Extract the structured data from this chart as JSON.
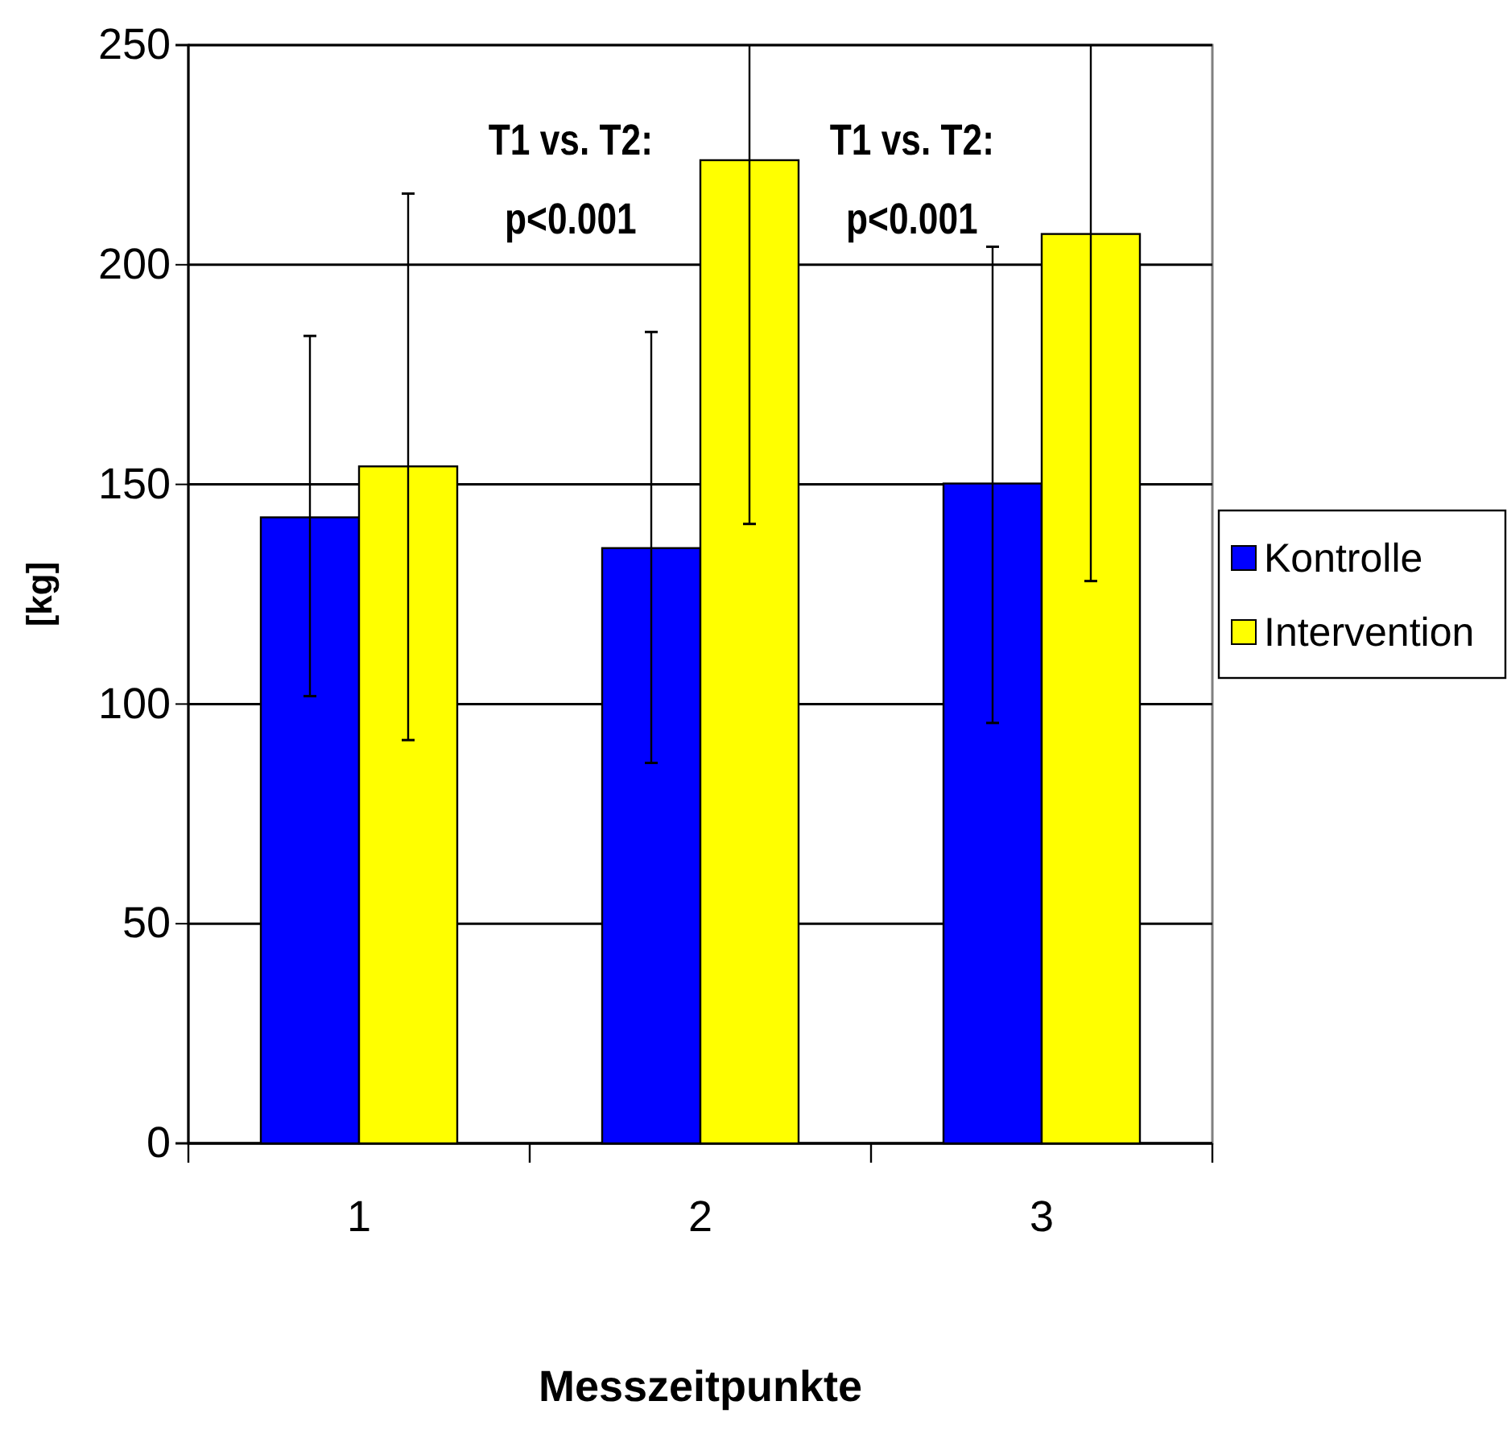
{
  "chart_data": {
    "type": "bar",
    "xlabel": "Messzeitpunkte",
    "ylabel": "[kg]",
    "categories": [
      "1",
      "2",
      "3"
    ],
    "series": [
      {
        "name": "Kontrolle",
        "color": "#0000ff",
        "values": [
          142.5,
          135.5,
          150.2
        ],
        "errors": [
          [
            101.8,
            183.8
          ],
          [
            86.6,
            184.7
          ],
          [
            95.7,
            204.1
          ]
        ]
      },
      {
        "name": "Intervention",
        "color": "#ffff00",
        "values": [
          154.1,
          223.8,
          207
        ],
        "errors": [
          [
            91.8,
            216.2
          ],
          [
            141,
            250
          ],
          [
            128,
            250
          ]
        ]
      }
    ],
    "ylim": [
      0,
      250
    ],
    "yticks": [
      0,
      50,
      100,
      150,
      200,
      250
    ],
    "grid": "y",
    "legend": "right",
    "annotations": [
      "T1 vs. T2:\np<0.001",
      "T1 vs. T2:\np<0.001"
    ]
  }
}
